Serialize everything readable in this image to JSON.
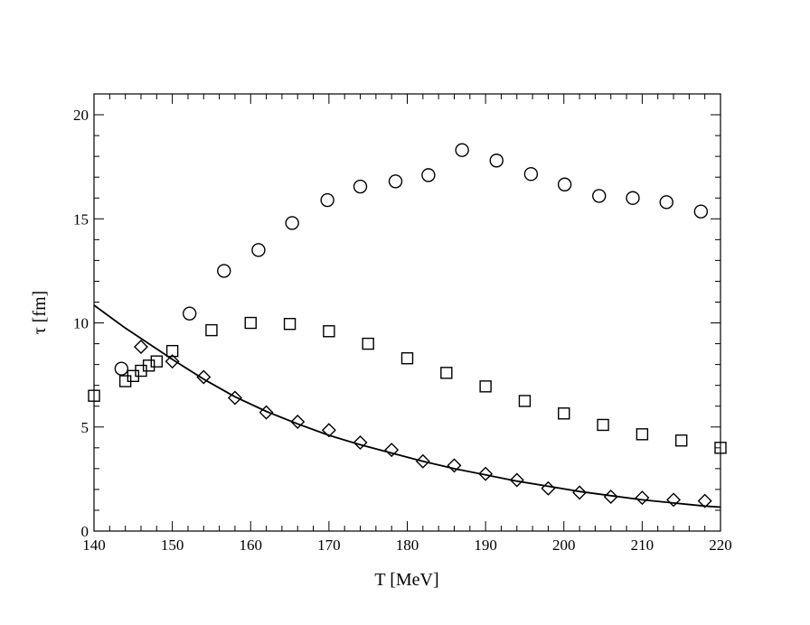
{
  "chart_data": {
    "type": "scatter",
    "xlabel": "T [MeV]",
    "ylabel": "τ [fm]",
    "xlim": [
      140,
      220
    ],
    "ylim": [
      0,
      21
    ],
    "x_ticks": [
      140,
      150,
      160,
      170,
      180,
      190,
      200,
      210,
      220
    ],
    "y_ticks": [
      0,
      5,
      10,
      15,
      20
    ],
    "x_minor_step": 2,
    "y_minor_step": 1,
    "grid": false,
    "series": [
      {
        "marker": "circle",
        "x": [
          143.5,
          152.2,
          156.6,
          161.0,
          165.3,
          169.8,
          174.0,
          178.5,
          182.7,
          187.0,
          191.4,
          195.8,
          200.1,
          204.5,
          208.8,
          213.1,
          217.5
        ],
        "y": [
          7.8,
          10.45,
          12.5,
          13.5,
          14.8,
          15.9,
          16.55,
          16.8,
          17.1,
          18.3,
          17.8,
          17.15,
          16.65,
          16.1,
          16.0,
          15.8,
          15.35
        ]
      },
      {
        "marker": "square",
        "x": [
          140.0,
          144.0,
          145.0,
          146.0,
          147.0,
          148.0,
          150.0,
          155.0,
          160.0,
          165.0,
          170.0,
          175.0,
          180.0,
          185.0,
          190.0,
          195.0,
          200.0,
          205.0,
          210.0,
          215.0,
          220.0
        ],
        "y": [
          6.5,
          7.2,
          7.45,
          7.7,
          7.95,
          8.15,
          8.65,
          9.65,
          10.0,
          9.95,
          9.6,
          9.0,
          8.3,
          7.6,
          6.95,
          6.25,
          5.65,
          5.1,
          4.65,
          4.35,
          4.0
        ]
      },
      {
        "marker": "diamond",
        "x": [
          146.0,
          150.0,
          154.0,
          158.0,
          162.0,
          166.0,
          170.0,
          174.0,
          178.0,
          182.0,
          186.0,
          190.0,
          194.0,
          198.0,
          202.0,
          206.0,
          210.0,
          214.0,
          218.0
        ],
        "y": [
          8.85,
          8.15,
          7.4,
          6.4,
          5.7,
          5.25,
          4.85,
          4.25,
          3.9,
          3.35,
          3.15,
          2.75,
          2.45,
          2.05,
          1.85,
          1.65,
          1.6,
          1.5,
          1.45
        ]
      },
      {
        "marker": "line",
        "x": [
          140,
          142,
          144,
          146,
          148,
          150,
          154,
          158,
          162,
          166,
          170,
          174,
          178,
          182,
          186,
          190,
          194,
          198,
          202,
          206,
          210,
          214,
          218,
          220
        ],
        "y": [
          10.85,
          10.3,
          9.75,
          9.25,
          8.75,
          8.25,
          7.3,
          6.45,
          5.75,
          5.15,
          4.6,
          4.15,
          3.75,
          3.35,
          3.0,
          2.7,
          2.4,
          2.15,
          1.9,
          1.7,
          1.5,
          1.35,
          1.2,
          1.15
        ]
      }
    ]
  }
}
